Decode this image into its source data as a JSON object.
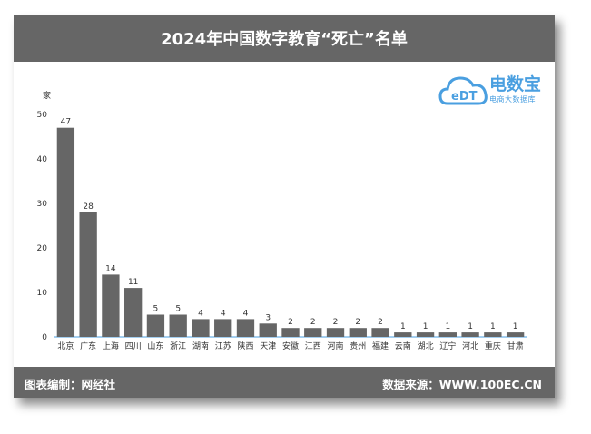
{
  "header": {
    "title": "2024年中国数字教育“死亡”名单"
  },
  "footer": {
    "left": "图表编制：网经社",
    "right": "数据来源：WWW.100EC.CN"
  },
  "logo": {
    "brand": "电数宝",
    "tagline": "电商大数据库",
    "mark": "eDT"
  },
  "colors": {
    "bar": "#666666",
    "header": "#666666",
    "logo": "#4a9fe0"
  },
  "chart_data": {
    "type": "bar",
    "ylabel": "家",
    "xlabel": "",
    "ylim": [
      0,
      50
    ],
    "yticks": [
      0,
      10,
      20,
      30,
      40,
      50
    ],
    "grid": false,
    "categories": [
      "北京",
      "广东",
      "上海",
      "四川",
      "山东",
      "浙江",
      "湖南",
      "江苏",
      "陕西",
      "天津",
      "安徽",
      "江西",
      "河南",
      "贵州",
      "福建",
      "云南",
      "湖北",
      "辽宁",
      "河北",
      "重庆",
      "甘肃"
    ],
    "values": [
      47,
      28,
      14,
      11,
      5,
      5,
      4,
      4,
      4,
      3,
      2,
      2,
      2,
      2,
      2,
      1,
      1,
      1,
      1,
      1,
      1
    ]
  }
}
